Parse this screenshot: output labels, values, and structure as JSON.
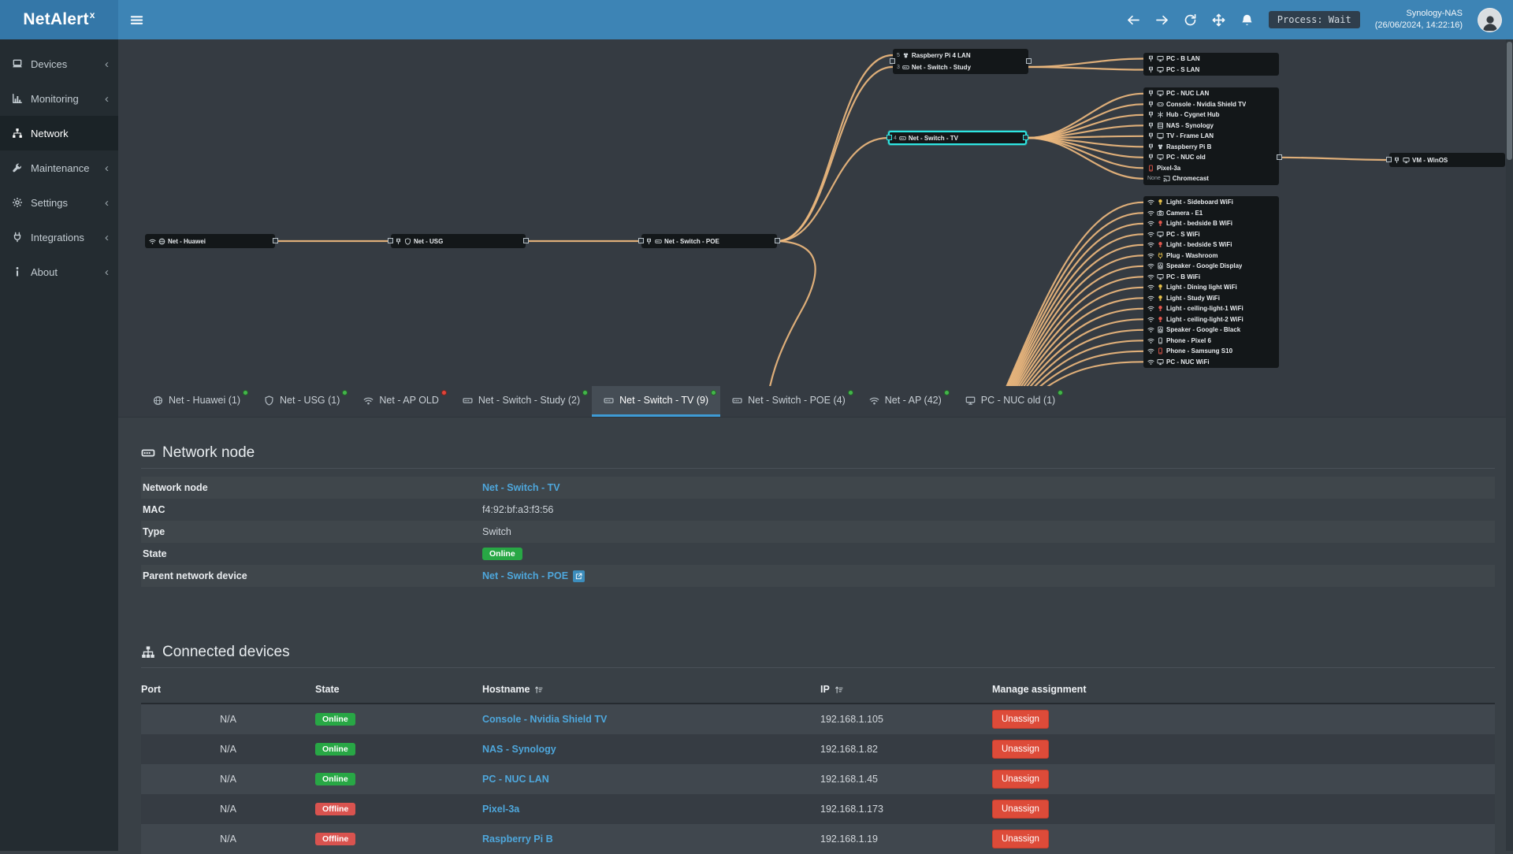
{
  "app": {
    "title": "NetAlert",
    "title_sup": "x",
    "process_badge": "Process: Wait",
    "server_name": "Synology-NAS",
    "server_time": "(26/06/2024, 14:22:16)",
    "topbar_icons": [
      "arrow-left",
      "arrow-right",
      "refresh",
      "move",
      "bell"
    ],
    "colors": {
      "accent": "#3c8dbc",
      "online": "#28a745",
      "offline": "#d9534f",
      "link": "#4ea7dc",
      "map_line": "#edb87e",
      "selection": "#2ee6e2"
    }
  },
  "sidebar": {
    "items": [
      {
        "label": "Devices",
        "icon": "laptop",
        "active": false
      },
      {
        "label": "Monitoring",
        "icon": "chart",
        "active": false
      },
      {
        "label": "Network",
        "icon": "network",
        "active": true
      },
      {
        "label": "Maintenance",
        "icon": "wrench",
        "active": false
      },
      {
        "label": "Settings",
        "icon": "gear",
        "active": false
      },
      {
        "label": "Integrations",
        "icon": "plug",
        "active": false
      },
      {
        "label": "About",
        "icon": "info",
        "active": false
      }
    ],
    "chevron": "‹"
  },
  "map": {
    "nodes": {
      "huawei": {
        "icons": [
          "wifi",
          "globe"
        ],
        "label": "Net - Huawei"
      },
      "usg": {
        "icons": [
          "eth",
          "shield"
        ],
        "label": "Net - USG"
      },
      "poe": {
        "icons": [
          "eth",
          "switch"
        ],
        "label": "Net - Switch - POE"
      },
      "tv": {
        "port": "4",
        "icons": [
          "switch"
        ],
        "label": "Net - Switch - TV",
        "selected": true
      },
      "vm": {
        "icons": [
          "eth",
          "monitor"
        ],
        "label": "VM - WinOS"
      }
    },
    "groups": {
      "study": [
        {
          "port": "5",
          "icons": [
            "pi"
          ],
          "label": "Raspberry Pi 4 LAN"
        },
        {
          "port": "3",
          "icons": [
            "switch"
          ],
          "label": "Net - Switch - Study"
        }
      ],
      "lanA": [
        {
          "icons": [
            "eth",
            "monitor"
          ],
          "label": "PC - B LAN"
        },
        {
          "icons": [
            "eth",
            "monitor"
          ],
          "label": "PC - S LAN"
        }
      ],
      "lanB": [
        {
          "icons": [
            "eth",
            "monitor"
          ],
          "label": "PC - NUC LAN"
        },
        {
          "icons": [
            "eth",
            "console"
          ],
          "label": "Console - Nvidia Shield TV"
        },
        {
          "icons": [
            "eth",
            "hub"
          ],
          "label": "Hub - Cygnet Hub"
        },
        {
          "icons": [
            "eth",
            "nas"
          ],
          "label": "NAS - Synology"
        },
        {
          "icons": [
            "eth",
            "tvframe"
          ],
          "label": "TV - Frame LAN"
        },
        {
          "icons": [
            "eth",
            "pi"
          ],
          "label": "Raspberry Pi B"
        },
        {
          "icons": [
            "eth",
            "monitor"
          ],
          "label": "PC - NUC old"
        },
        {
          "icons": [
            "phone"
          ],
          "label": "Pixel-3a",
          "color": "#e2574c"
        },
        {
          "port": "None",
          "icons": [
            "cast"
          ],
          "label": "Chromecast"
        }
      ],
      "wifi": [
        {
          "icons": [
            "wifi",
            "bulb"
          ],
          "label": "Light - Sideboard WiFi",
          "color": "#e7c04a"
        },
        {
          "icons": [
            "wifi",
            "camera"
          ],
          "label": "Camera - E1"
        },
        {
          "icons": [
            "wifi",
            "bulb"
          ],
          "label": "Light - bedside B WiFi",
          "color": "#e2574c"
        },
        {
          "icons": [
            "wifi",
            "monitor"
          ],
          "label": "PC - S WiFi"
        },
        {
          "icons": [
            "wifi",
            "bulb"
          ],
          "label": "Light - bedside S WiFi",
          "color": "#e2574c"
        },
        {
          "icons": [
            "wifi",
            "plug"
          ],
          "label": "Plug - Washroom",
          "color": "#e7c04a"
        },
        {
          "icons": [
            "wifi",
            "speaker"
          ],
          "label": "Speaker - Google Display"
        },
        {
          "icons": [
            "wifi",
            "monitor"
          ],
          "label": "PC - B WiFi"
        },
        {
          "icons": [
            "wifi",
            "bulb"
          ],
          "label": "Light - Dining light WiFi",
          "color": "#e7c04a"
        },
        {
          "icons": [
            "wifi",
            "bulb"
          ],
          "label": "Light - Study WiFi",
          "color": "#e7c04a"
        },
        {
          "icons": [
            "wifi",
            "bulb"
          ],
          "label": "Light - ceiling-light-1 WiFi",
          "color": "#e2574c"
        },
        {
          "icons": [
            "wifi",
            "bulb"
          ],
          "label": "Light - ceiling-light-2 WiFi",
          "color": "#e2574c"
        },
        {
          "icons": [
            "wifi",
            "speaker"
          ],
          "label": "Speaker - Google - Black"
        },
        {
          "icons": [
            "wifi",
            "phone"
          ],
          "label": "Phone - Pixel 6"
        },
        {
          "icons": [
            "wifi",
            "phone"
          ],
          "label": "Phone - Samsung S10",
          "color": "#e2574c"
        },
        {
          "icons": [
            "wifi",
            "monitor"
          ],
          "label": "PC - NUC WiFi"
        }
      ]
    }
  },
  "tabs": [
    {
      "label": "Net - Huawei (1)",
      "icon": "globe",
      "status": "green",
      "active": false
    },
    {
      "label": "Net - USG (1)",
      "icon": "shield",
      "status": "green",
      "active": false
    },
    {
      "label": "Net - AP OLD",
      "icon": "wifi",
      "status": "red",
      "active": false
    },
    {
      "label": "Net - Switch - Study (2)",
      "icon": "switch",
      "status": "green",
      "active": false
    },
    {
      "label": "Net - Switch - TV (9)",
      "icon": "switch",
      "status": "green",
      "active": true
    },
    {
      "label": "Net - Switch - POE (4)",
      "icon": "switch",
      "status": "green",
      "active": false
    },
    {
      "label": "Net - AP (42)",
      "icon": "wifi",
      "status": "green",
      "active": false
    },
    {
      "label": "PC - NUC old (1)",
      "icon": "monitor",
      "status": "green",
      "active": false
    }
  ],
  "node_details": {
    "section_title": "Network node",
    "fields": [
      {
        "label": "Network node",
        "value": "Net - Switch - TV",
        "type": "link"
      },
      {
        "label": "MAC",
        "value": "f4:92:bf:a3:f3:56",
        "type": "text"
      },
      {
        "label": "Type",
        "value": "Switch",
        "type": "text"
      },
      {
        "label": "State",
        "value": "Online",
        "type": "badge"
      },
      {
        "label": "Parent network device",
        "value": "Net - Switch - POE",
        "type": "link-ext"
      }
    ]
  },
  "connected": {
    "section_title": "Connected devices",
    "columns": {
      "port": "Port",
      "state": "State",
      "hostname": "Hostname",
      "ip": "IP",
      "manage": "Manage assignment"
    },
    "unassign_label": "Unassign",
    "rows": [
      {
        "port": "N/A",
        "state": "Online",
        "hostname": "Console - Nvidia Shield TV",
        "ip": "192.168.1.105"
      },
      {
        "port": "N/A",
        "state": "Online",
        "hostname": "NAS - Synology",
        "ip": "192.168.1.82"
      },
      {
        "port": "N/A",
        "state": "Online",
        "hostname": "PC - NUC LAN",
        "ip": "192.168.1.45"
      },
      {
        "port": "N/A",
        "state": "Offline",
        "hostname": "Pixel-3a",
        "ip": "192.168.1.173"
      },
      {
        "port": "N/A",
        "state": "Offline",
        "hostname": "Raspberry Pi B",
        "ip": "192.168.1.19"
      }
    ]
  }
}
